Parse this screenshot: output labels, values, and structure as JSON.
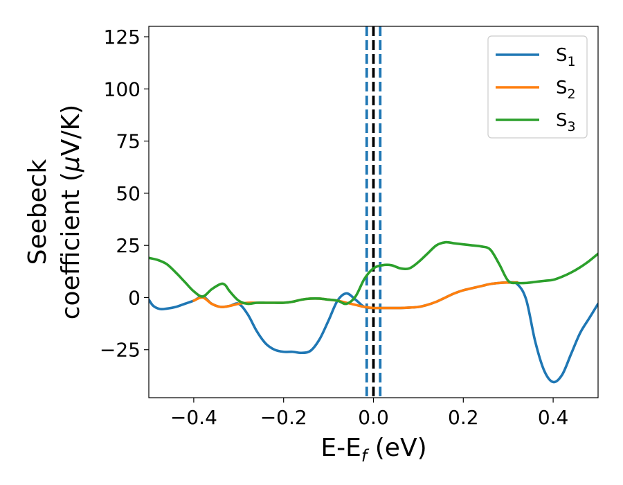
{
  "chart_data": {
    "type": "line",
    "xlabel": {
      "main": "E-E",
      "sub": "f",
      "suffix": " (eV)"
    },
    "ylabel": {
      "line1": "Seebeck",
      "line2": "coefficient  (",
      "mu": "μ",
      "line2_suffix": "V/K)"
    },
    "xlim": [
      -0.5,
      0.5
    ],
    "ylim": [
      -48,
      130
    ],
    "xticks": [
      -0.4,
      -0.2,
      0.0,
      0.2,
      0.4
    ],
    "xtick_labels": [
      "−0.4",
      "−0.2",
      "0.0",
      "0.2",
      "0.4"
    ],
    "yticks": [
      -25,
      0,
      25,
      50,
      75,
      100,
      125
    ],
    "ytick_labels": [
      "−25",
      "0",
      "25",
      "50",
      "75",
      "100",
      "125"
    ],
    "grid": false,
    "legend_position": "top-right",
    "vlines": [
      {
        "x": -0.015,
        "style": "dashed",
        "color": "#1f77b4"
      },
      {
        "x": 0.0,
        "style": "dashed",
        "color": "#000000"
      },
      {
        "x": 0.015,
        "style": "dashed",
        "color": "#1f77b4"
      }
    ],
    "series": [
      {
        "name": "S",
        "sub": "1",
        "color": "#1f77b4",
        "x": [
          -0.5,
          -0.49,
          -0.475,
          -0.46,
          -0.44,
          -0.42,
          -0.4,
          -0.38,
          -0.36,
          -0.34,
          -0.32,
          -0.3,
          -0.28,
          -0.26,
          -0.24,
          -0.22,
          -0.2,
          -0.18,
          -0.16,
          -0.14,
          -0.12,
          -0.1,
          -0.08,
          -0.06,
          -0.04,
          -0.02,
          0.0,
          0.02,
          0.04,
          0.06,
          0.08,
          0.1,
          0.12,
          0.14,
          0.16,
          0.18,
          0.2,
          0.22,
          0.24,
          0.26,
          0.28,
          0.3,
          0.32,
          0.34,
          0.36,
          0.38,
          0.4,
          0.42,
          0.44,
          0.46,
          0.48,
          0.5
        ],
        "y": [
          -1,
          -4,
          -5.5,
          -5.3,
          -4.5,
          -3,
          -1.5,
          0.5,
          -3,
          -4.5,
          -4,
          -3,
          -8,
          -16,
          -22,
          -25,
          -26,
          -26,
          -26.5,
          -25.5,
          -20,
          -11,
          -1.5,
          2,
          -1,
          -4.5,
          -5,
          -5,
          -5,
          -5,
          -4.8,
          -4.5,
          -3.5,
          -2,
          0,
          2,
          3.5,
          4.5,
          5.5,
          6.5,
          7,
          7.2,
          6.5,
          -1,
          -21,
          -35,
          -40.5,
          -37,
          -27,
          -17,
          -10,
          -3
        ]
      },
      {
        "name": "S",
        "sub": "2",
        "color": "#ff7f0e",
        "x": [
          -0.4,
          -0.38,
          -0.36,
          -0.34,
          -0.32,
          -0.3,
          -0.28,
          -0.26,
          -0.24,
          -0.22,
          -0.2,
          -0.18,
          -0.16,
          -0.14,
          -0.12,
          -0.1,
          -0.08,
          -0.06,
          -0.04,
          -0.02,
          0.0,
          0.02,
          0.04,
          0.06,
          0.08,
          0.1,
          0.12,
          0.14,
          0.16,
          0.18,
          0.2,
          0.22,
          0.24,
          0.26,
          0.28,
          0.3,
          0.32
        ],
        "y": [
          -1.5,
          0,
          -3,
          -4.5,
          -4,
          -3,
          -2.5,
          -2.5,
          -2.5,
          -2.5,
          -2.5,
          -2,
          -1,
          -0.5,
          -0.5,
          -1,
          -1.5,
          -2.5,
          -3.5,
          -4.5,
          -5,
          -5,
          -5,
          -5,
          -4.8,
          -4.5,
          -3.5,
          -2,
          0,
          2,
          3.5,
          4.5,
          5.5,
          6.5,
          7,
          7.2,
          7.3
        ]
      },
      {
        "name": "S",
        "sub": "3",
        "color": "#2ca02c",
        "x": [
          -0.5,
          -0.48,
          -0.46,
          -0.44,
          -0.42,
          -0.4,
          -0.38,
          -0.36,
          -0.34,
          -0.33,
          -0.32,
          -0.3,
          -0.28,
          -0.26,
          -0.24,
          -0.22,
          -0.2,
          -0.18,
          -0.16,
          -0.14,
          -0.12,
          -0.1,
          -0.08,
          -0.06,
          -0.04,
          -0.02,
          0.0,
          0.02,
          0.04,
          0.06,
          0.08,
          0.1,
          0.12,
          0.14,
          0.16,
          0.18,
          0.2,
          0.22,
          0.24,
          0.26,
          0.28,
          0.3,
          0.32,
          0.34,
          0.36,
          0.38,
          0.4,
          0.42,
          0.44,
          0.46,
          0.48,
          0.5
        ],
        "y": [
          19,
          18,
          16,
          12,
          7.5,
          3,
          0.5,
          4,
          6.5,
          6,
          3,
          -1.5,
          -3,
          -2.5,
          -2.5,
          -2.5,
          -2.5,
          -2,
          -1,
          -0.5,
          -0.5,
          -1,
          -1.5,
          -3,
          0.5,
          9,
          14,
          15.5,
          15.5,
          14,
          14,
          17,
          21,
          25,
          26.5,
          26,
          25.5,
          25,
          24.5,
          23,
          16,
          8,
          7,
          7,
          7.5,
          8,
          8.5,
          10,
          12,
          14.5,
          17.5,
          21
        ]
      }
    ]
  }
}
